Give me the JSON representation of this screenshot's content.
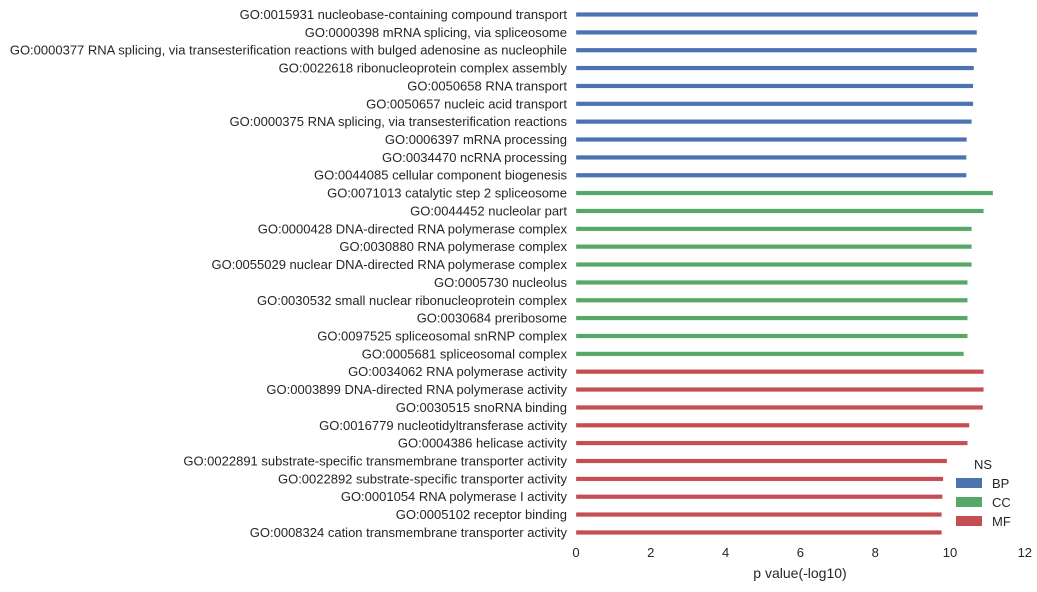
{
  "chart_data": {
    "type": "bar",
    "orientation": "horizontal",
    "title": "",
    "xlabel": "p value(-log10)",
    "ylabel": "",
    "xlim": [
      0,
      12
    ],
    "xticks": [
      "0",
      "2",
      "4",
      "6",
      "8",
      "10",
      "12"
    ],
    "grid": false,
    "legend": {
      "title": "NS",
      "placement": "bottom-right",
      "entries": [
        {
          "name": "BP",
          "color": "#4c72b0"
        },
        {
          "name": "CC",
          "color": "#55a868"
        },
        {
          "name": "MF",
          "color": "#c44e52"
        }
      ]
    },
    "categories": [
      "GO:0015931 nucleobase-containing compound transport",
      "GO:0000398 mRNA splicing, via spliceosome",
      "GO:0000377 RNA splicing, via transesterification reactions with bulged adenosine as nucleophile",
      "GO:0022618 ribonucleoprotein complex assembly",
      "GO:0050658 RNA transport",
      "GO:0050657 nucleic acid transport",
      "GO:0000375 RNA splicing, via transesterification reactions",
      "GO:0006397 mRNA processing",
      "GO:0034470 ncRNA processing",
      "GO:0044085 cellular component biogenesis",
      "GO:0071013 catalytic step 2 spliceosome",
      "GO:0044452 nucleolar part",
      "GO:0000428 DNA-directed RNA polymerase complex",
      "GO:0030880 RNA polymerase complex",
      "GO:0055029 nuclear DNA-directed RNA polymerase complex",
      "GO:0005730 nucleolus",
      "GO:0030532 small nuclear ribonucleoprotein complex",
      "GO:0030684 preribosome",
      "GO:0097525 spliceosomal snRNP complex",
      "GO:0005681 spliceosomal complex",
      "GO:0034062 RNA polymerase activity",
      "GO:0003899 DNA-directed RNA polymerase activity",
      "GO:0030515 snoRNA binding",
      "GO:0016779 nucleotidyltransferase activity",
      "GO:0004386 helicase activity",
      "GO:0022891 substrate-specific transmembrane transporter activity",
      "GO:0022892 substrate-specific transporter activity",
      "GO:0001054 RNA polymerase I activity",
      "GO:0005102 receptor binding",
      "GO:0008324 cation transmembrane transporter activity"
    ],
    "values": [
      10.75,
      10.72,
      10.72,
      10.64,
      10.62,
      10.62,
      10.58,
      10.45,
      10.44,
      10.44,
      11.15,
      10.9,
      10.58,
      10.58,
      10.58,
      10.47,
      10.47,
      10.47,
      10.47,
      10.37,
      10.9,
      10.9,
      10.88,
      10.52,
      10.47,
      9.92,
      9.82,
      9.8,
      9.78,
      9.78
    ],
    "groups": [
      "BP",
      "BP",
      "BP",
      "BP",
      "BP",
      "BP",
      "BP",
      "BP",
      "BP",
      "BP",
      "CC",
      "CC",
      "CC",
      "CC",
      "CC",
      "CC",
      "CC",
      "CC",
      "CC",
      "CC",
      "MF",
      "MF",
      "MF",
      "MF",
      "MF",
      "MF",
      "MF",
      "MF",
      "MF",
      "MF"
    ]
  }
}
